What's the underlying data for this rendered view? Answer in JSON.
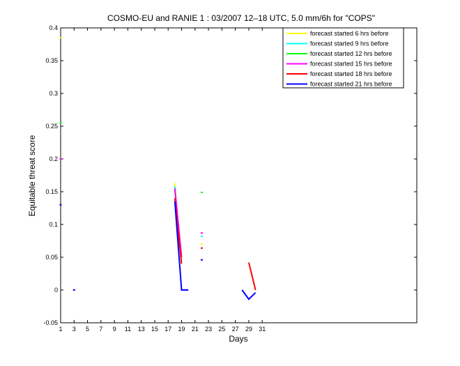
{
  "chart_data": {
    "type": "line",
    "title": "COSMO-EU and RANIE 1 : 03/2007 12–18 UTC, 5.0 mm/6h for \"COPS\"",
    "xlabel": "Days",
    "ylabel": "Equitable threat score",
    "xlim": [
      1,
      54
    ],
    "ylim": [
      -0.05,
      0.4
    ],
    "xticks": [
      1,
      3,
      5,
      7,
      9,
      11,
      13,
      15,
      17,
      19,
      21,
      23,
      25,
      27,
      29,
      31
    ],
    "yticks": [
      -0.05,
      0,
      0.05,
      0.1,
      0.15,
      0.2,
      0.25,
      0.3,
      0.35,
      0.4
    ],
    "grid": false,
    "legend_position": "top-right",
    "series": [
      {
        "name": "forecast started 6 hrs before",
        "color": "#ffff00",
        "segments": [
          [
            [
              1,
              0.385
            ]
          ],
          [
            [
              18,
              0.163
            ],
            [
              18.5,
              0.075
            ]
          ],
          [
            [
              22,
              0.07
            ]
          ]
        ]
      },
      {
        "name": "forecast started 9 hrs before",
        "color": "#00ffff",
        "segments": [
          [
            [
              18,
              0.158
            ],
            [
              18.6,
              0.07
            ]
          ],
          [
            [
              22,
              0.082
            ]
          ]
        ]
      },
      {
        "name": "forecast started 12 hrs before",
        "color": "#00ff00",
        "segments": [
          [
            [
              1,
              0.255
            ]
          ],
          [
            [
              18,
              0.152
            ],
            [
              18.7,
              0.065
            ]
          ],
          [
            [
              22,
              0.149
            ]
          ]
        ]
      },
      {
        "name": "forecast started 15 hrs before",
        "color": "#ff00ff",
        "segments": [
          [
            [
              1,
              0.2
            ]
          ],
          [
            [
              18,
              0.155
            ],
            [
              19,
              0.05
            ]
          ],
          [
            [
              22,
              0.087
            ]
          ]
        ]
      },
      {
        "name": "forecast started 18 hrs before",
        "color": "#ff0000",
        "segments": [
          [
            [
              18,
              0.14
            ],
            [
              19,
              0.04
            ]
          ],
          [
            [
              22,
              0.064
            ]
          ],
          [
            [
              29,
              0.042
            ],
            [
              30,
              0.0
            ]
          ]
        ]
      },
      {
        "name": "forecast started 21 hrs before",
        "color": "#0000ff",
        "segments": [
          [
            [
              1,
              0.13
            ]
          ],
          [
            [
              3,
              0.0
            ]
          ],
          [
            [
              18,
              0.135
            ],
            [
              19,
              0.0
            ],
            [
              20,
              0.0
            ]
          ],
          [
            [
              22,
              0.046
            ]
          ],
          [
            [
              28,
              0.0
            ],
            [
              29,
              -0.014
            ],
            [
              30,
              -0.004
            ]
          ]
        ]
      }
    ]
  }
}
